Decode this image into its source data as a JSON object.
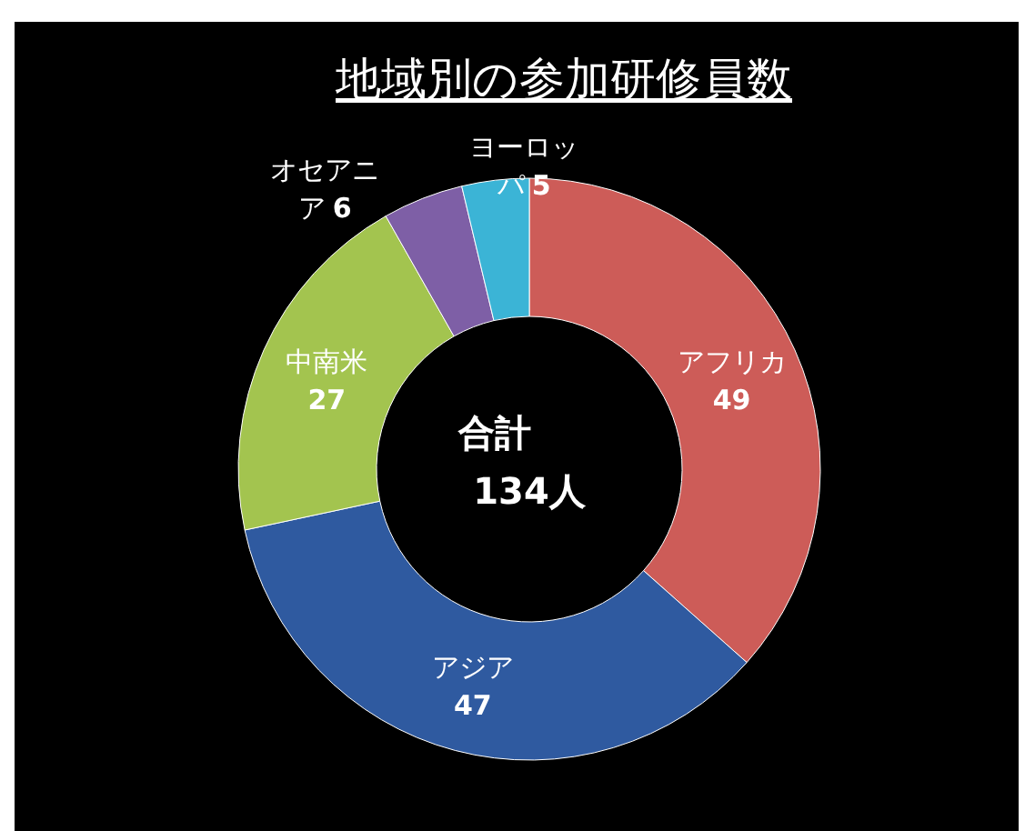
{
  "chart_data": {
    "type": "donut",
    "title": "地域別の参加研修員数",
    "categories": [
      "アフリカ",
      "アジア",
      "中南米",
      "オセアニア",
      "ヨーロッパ"
    ],
    "values": [
      49,
      47,
      27,
      6,
      5
    ],
    "colors": [
      "#cd5c58",
      "#2f5aa0",
      "#a3c44f",
      "#7e5fa6",
      "#3bb4d6"
    ],
    "data_labels": true,
    "annotations": [
      "合計",
      "134人"
    ]
  }
}
